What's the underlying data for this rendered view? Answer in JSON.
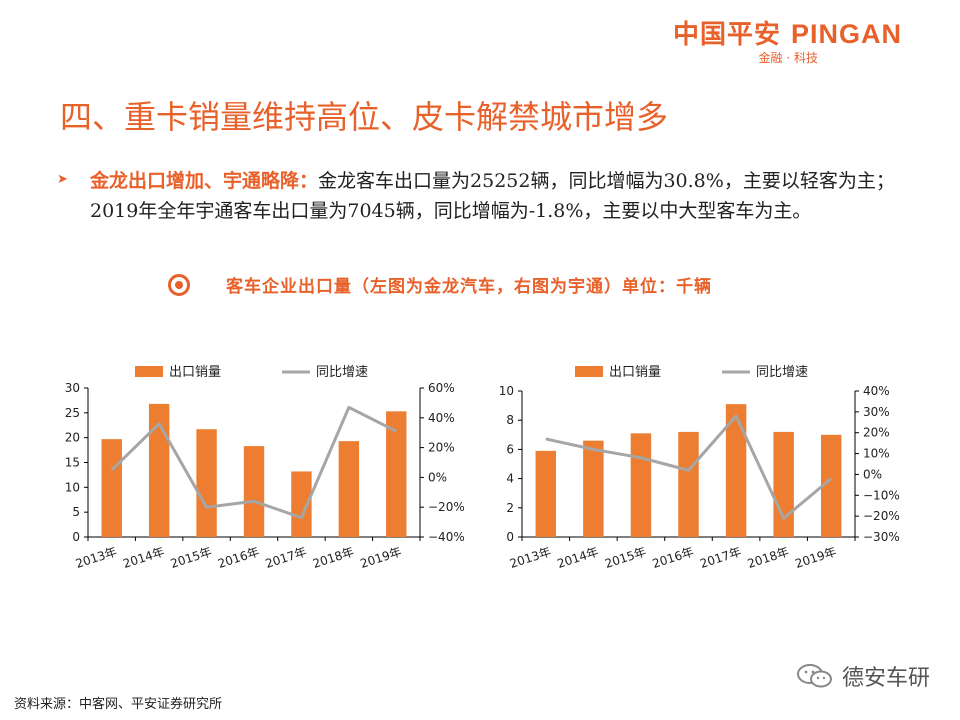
{
  "logo": {
    "cn": "中国平安",
    "en": "PINGAN",
    "sub": "金融 · 科技"
  },
  "title": "四、重卡销量维持高位、皮卡解禁城市增多",
  "bullet": {
    "head": "金龙出口增加、宇通略降：",
    "body": "金龙客车出口量为25252辆，同比增幅为30.8%，主要以轻客为主；2019年全年宇通客车出口量为7045辆，同比增幅为-1.8%，主要以中大型客车为主。"
  },
  "subheading": "客车企业出口量（左图为金龙汽车，右图为宇通）单位：千辆",
  "source": "资料来源：中客网、平安证券研究所",
  "watermark": "德安车研",
  "colors": {
    "bar": "#ed7d31",
    "line": "#a6a6a6",
    "accent": "#e8612a"
  },
  "chart_data": [
    {
      "type": "bar",
      "categories": [
        "2013年",
        "2014年",
        "2015年",
        "2016年",
        "2017年",
        "2018年",
        "2019年"
      ],
      "series": [
        {
          "name": "出口销量",
          "type": "bar",
          "axis": "left",
          "values": [
            19.7,
            26.8,
            21.7,
            18.3,
            13.2,
            19.3,
            25.3
          ]
        },
        {
          "name": "同比增速",
          "type": "line",
          "axis": "right",
          "values": [
            5,
            36,
            -20,
            -16,
            -27,
            47,
            31
          ]
        }
      ],
      "ylim": [
        0,
        30
      ],
      "yticks": [
        0,
        5,
        10,
        15,
        20,
        25,
        30
      ],
      "yticklabels": [
        "0",
        "5",
        "10",
        "15",
        "20",
        "25",
        "30"
      ],
      "y2lim": [
        -40,
        60
      ],
      "y2ticks": [
        -40,
        -20,
        0,
        20,
        40,
        60
      ],
      "y2ticklabels": [
        "−40%",
        "−20%",
        "0%",
        "20%",
        "40%",
        "60%"
      ],
      "legend": "top"
    },
    {
      "type": "bar",
      "categories": [
        "2013年",
        "2014年",
        "2015年",
        "2016年",
        "2017年",
        "2018年",
        "2019年"
      ],
      "series": [
        {
          "name": "出口销量",
          "type": "bar",
          "axis": "left",
          "values": [
            5.9,
            6.6,
            7.1,
            7.2,
            9.1,
            7.2,
            7.0
          ]
        },
        {
          "name": "同比增速",
          "type": "line",
          "axis": "right",
          "values": [
            17,
            12,
            8,
            2,
            28,
            -21,
            -2
          ]
        }
      ],
      "ylim": [
        0,
        10
      ],
      "yticks": [
        0,
        2,
        4,
        6,
        8,
        10
      ],
      "yticklabels": [
        "0",
        "2",
        "4",
        "6",
        "8",
        "10"
      ],
      "y2lim": [
        -30,
        40
      ],
      "y2ticks": [
        -30,
        -20,
        -10,
        0,
        10,
        20,
        30,
        40
      ],
      "y2ticklabels": [
        "−30%",
        "−20%",
        "−10%",
        "0%",
        "10%",
        "20%",
        "30%",
        "40%"
      ],
      "legend": "top"
    }
  ]
}
